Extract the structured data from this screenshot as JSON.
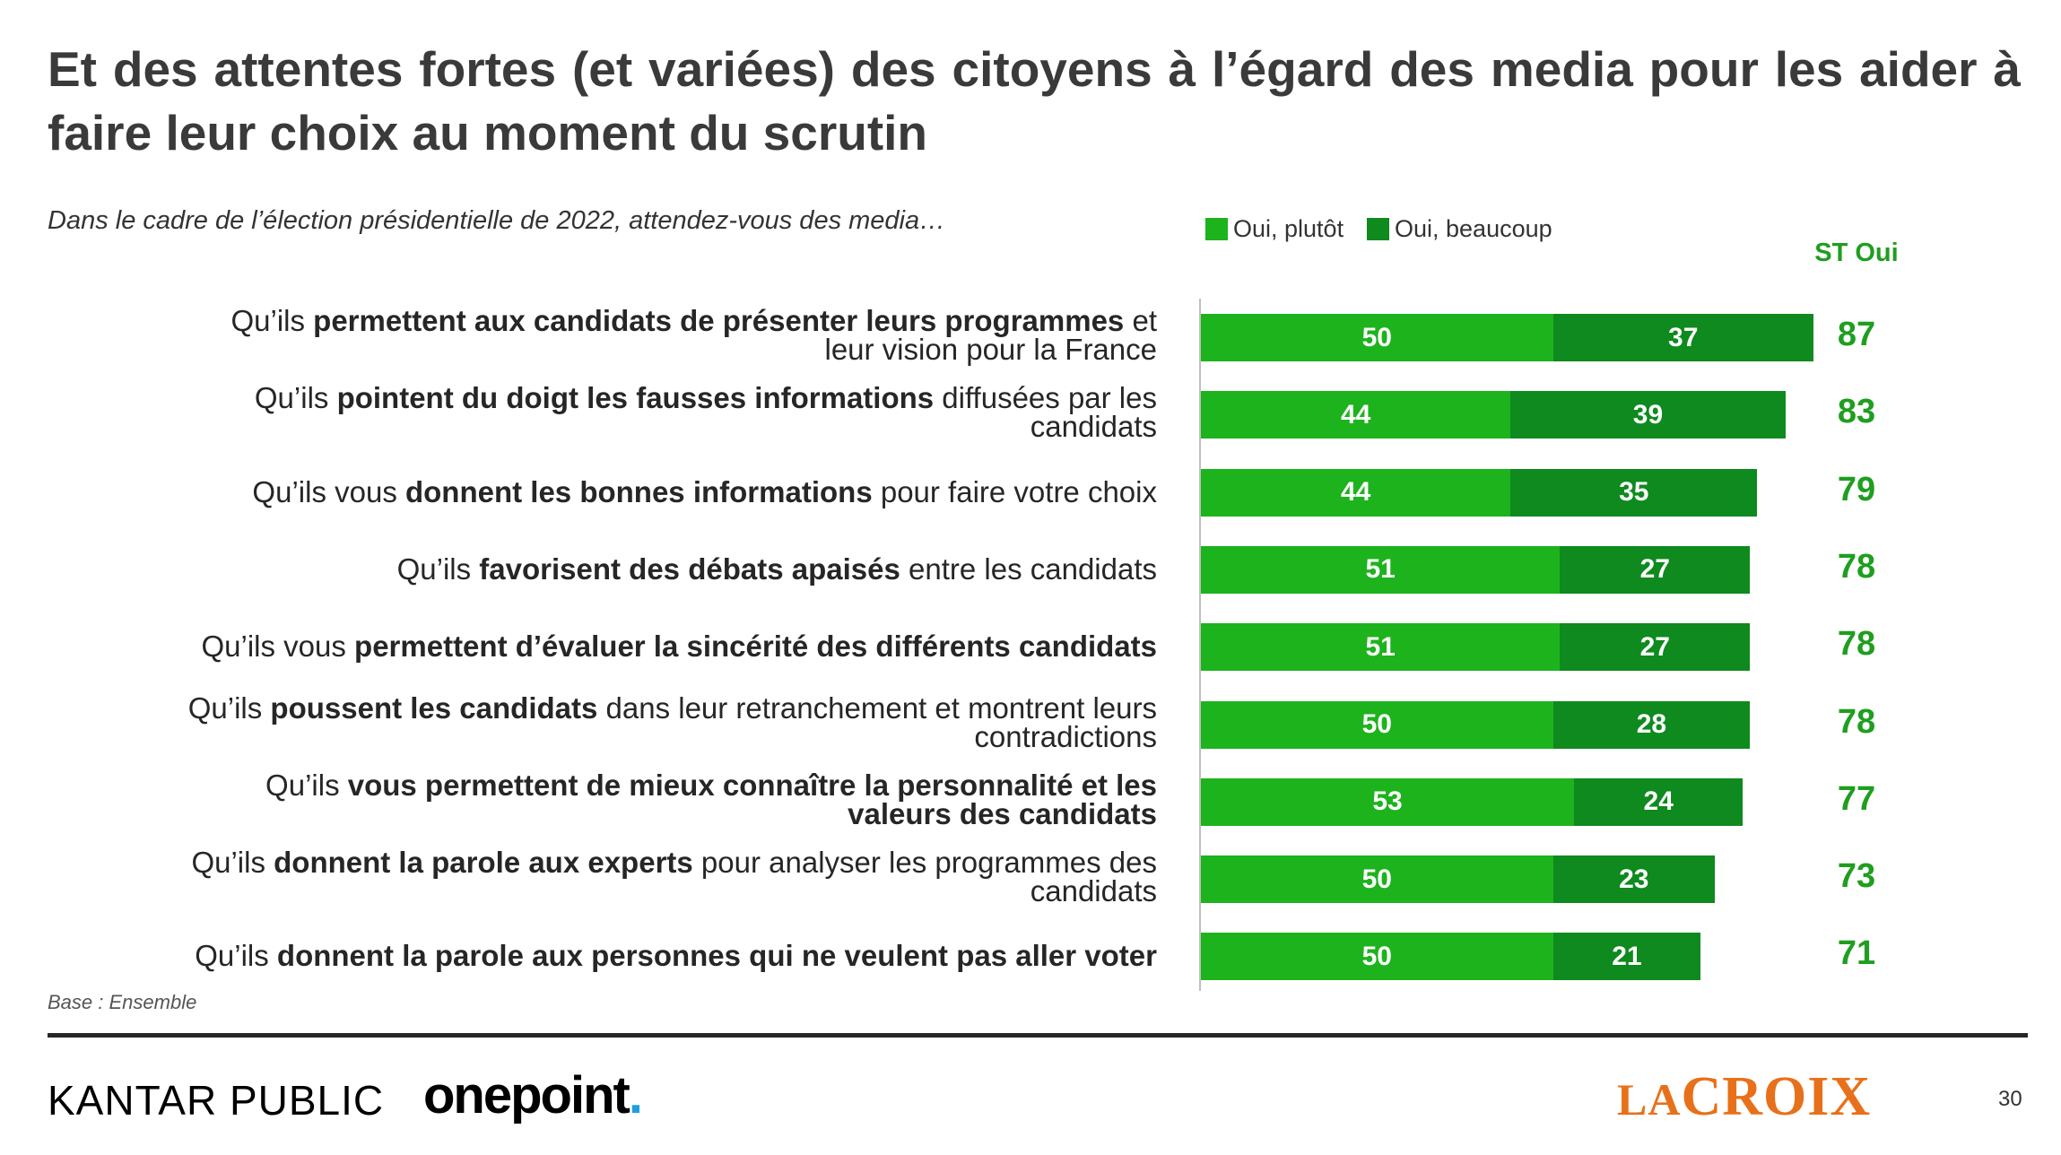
{
  "title": "Et des attentes fortes (et variées) des citoyens à l’égard des media pour les aider à faire leur choix au moment du scrutin",
  "subtitle": "Dans le cadre de l’élection présidentielle de 2022, attendez-vous des media…",
  "legend": {
    "plutot": "Oui, plutôt",
    "beaucoup": "Oui, beaucoup"
  },
  "st_header": "ST Oui",
  "colors": {
    "plutot": "#1db31d",
    "beaucoup": "#0e8a1e",
    "st": "#1f9e1f"
  },
  "rows": [
    {
      "pre": "Qu’ils ",
      "bold": "permettent aux candidats de présenter leurs programmes",
      "post": " et leur vision pour la France"
    },
    {
      "pre": "Qu’ils ",
      "bold": "pointent du doigt les fausses informations",
      "post": " diffusées par les candidats"
    },
    {
      "pre": "Qu’ils vous ",
      "bold": "donnent les bonnes informations",
      "post": " pour faire votre choix"
    },
    {
      "pre": "Qu’ils ",
      "bold": "favorisent des débats apaisés",
      "post": " entre les candidats"
    },
    {
      "pre": "Qu’ils vous ",
      "bold": "permettent d’évaluer la sincérité des différents candidats",
      "post": ""
    },
    {
      "pre": "Qu’ils ",
      "bold": "poussent les candidats",
      "post": " dans leur retranchement et montrent leurs contradictions"
    },
    {
      "pre": "Qu’ils ",
      "bold": "vous permettent de mieux connaître la personnalité et les valeurs des candidats",
      "post": ""
    },
    {
      "pre": "Qu’ils ",
      "bold": "donnent la parole aux experts",
      "post": " pour analyser les programmes des candidats"
    },
    {
      "pre": "Qu’ils ",
      "bold": "donnent la parole aux personnes qui ne veulent pas aller voter",
      "post": ""
    }
  ],
  "chart_data": {
    "type": "bar",
    "orientation": "horizontal",
    "stacked": true,
    "categories": [
      "Qu’ils permettent aux candidats de présenter leurs programmes et leur vision pour la France",
      "Qu’ils pointent du doigt les fausses informations diffusées par les candidats",
      "Qu’ils vous donnent les bonnes informations pour faire votre choix",
      "Qu’ils favorisent des débats apaisés entre les candidats",
      "Qu’ils vous permettent d’évaluer la sincérité des différents candidats",
      "Qu’ils poussent les candidats dans leur retranchement et montrent leurs contradictions",
      "Qu’ils vous permettent de mieux connaître la personnalité et les valeurs des candidats",
      "Qu’ils donnent la parole aux experts pour analyser les programmes des candidats",
      "Qu’ils donnent la parole aux personnes qui ne veulent pas aller voter"
    ],
    "series": [
      {
        "name": "Oui, plutôt",
        "values": [
          50,
          44,
          44,
          51,
          51,
          50,
          53,
          50,
          50
        ]
      },
      {
        "name": "Oui, beaucoup",
        "values": [
          37,
          39,
          35,
          27,
          27,
          28,
          24,
          23,
          21
        ]
      }
    ],
    "totals": [
      87,
      83,
      79,
      78,
      78,
      78,
      77,
      73,
      71
    ],
    "totals_label": "ST Oui",
    "xlim": [
      0,
      100
    ],
    "legend_position": "top-right"
  },
  "base_note": "Base : Ensemble",
  "footer": {
    "kantar": "KANTAR PUBLIC",
    "onepoint": "onepoint",
    "onepoint_dot": ".",
    "lacroix_la": "LA",
    "lacroix_croix": "CROIX",
    "page_number": "30"
  }
}
